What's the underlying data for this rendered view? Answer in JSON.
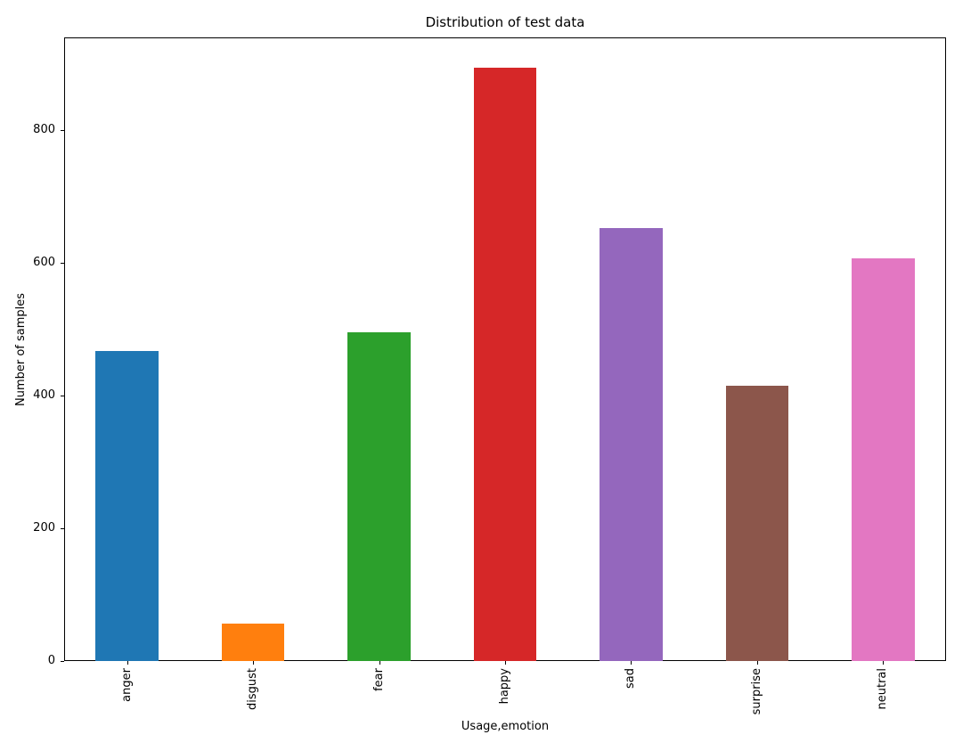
{
  "chart_data": {
    "type": "bar",
    "title": "Distribution of test data",
    "xlabel": "Usage,emotion",
    "ylabel": "Number of samples",
    "categories": [
      "anger",
      "disgust",
      "fear",
      "happy",
      "sad",
      "surprise",
      "neutral"
    ],
    "values": [
      467,
      56,
      496,
      895,
      653,
      415,
      607
    ],
    "colors": [
      "#1f77b4",
      "#ff7f0e",
      "#2ca02c",
      "#d62728",
      "#9467bd",
      "#8c564b",
      "#e377c2"
    ],
    "ylim": [
      0,
      940
    ],
    "yticks": [
      0,
      200,
      400,
      600,
      800
    ],
    "bar_width_fraction": 0.5,
    "x_tick_label_rotation": 90,
    "grid": false,
    "legend": null,
    "background_color": "#ffffff",
    "spine_color": "#000000",
    "text_color": "#000000"
  }
}
